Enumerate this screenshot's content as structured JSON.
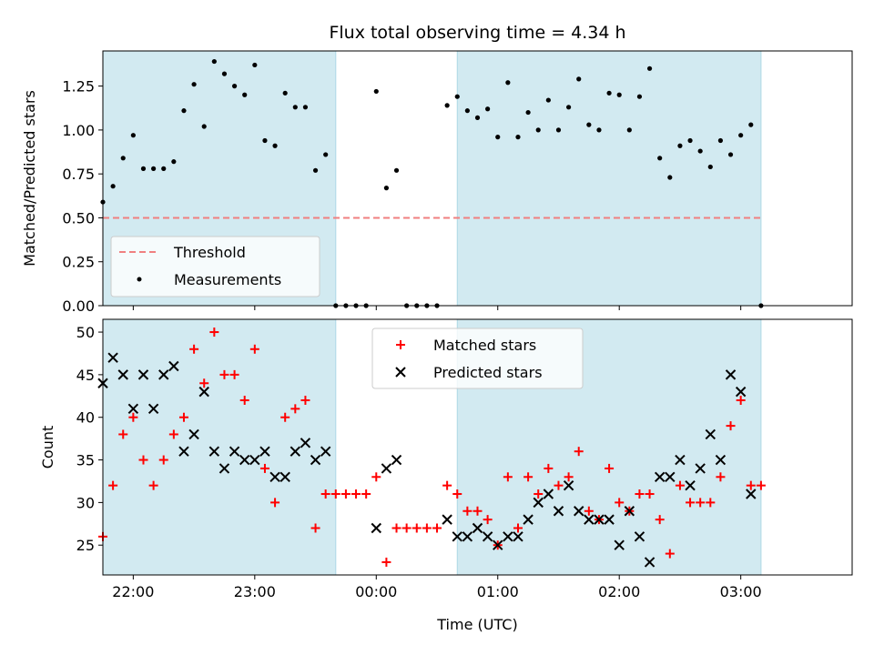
{
  "chart_data": [
    {
      "type": "scatter",
      "title": "Flux total observing time = 4.34 h",
      "ylabel": "Matched/Predicted stars",
      "ylim": [
        0,
        1.45
      ],
      "yticks": [
        0.0,
        0.25,
        0.5,
        0.75,
        1.0,
        1.25
      ],
      "ytick_labels": [
        "0.00",
        "0.25",
        "0.50",
        "0.75",
        "1.00",
        "1.25"
      ],
      "legend": {
        "placement": "lower-left",
        "entries": [
          "Threshold",
          "Measurements"
        ]
      },
      "threshold": {
        "name": "Threshold",
        "value": 0.5,
        "color": "#f08080",
        "style": "dashed",
        "x_range": [
          "21:45",
          "03:10"
        ]
      },
      "series": [
        {
          "name": "Measurements",
          "color": "#000000",
          "marker": "dot",
          "x": [
            "21:45",
            "21:50",
            "21:55",
            "22:00",
            "22:05",
            "22:10",
            "22:15",
            "22:20",
            "22:25",
            "22:30",
            "22:35",
            "22:40",
            "22:45",
            "22:50",
            "22:55",
            "23:00",
            "23:05",
            "23:10",
            "23:15",
            "23:20",
            "23:25",
            "23:30",
            "23:35",
            "23:40",
            "23:45",
            "23:50",
            "23:55",
            "00:00",
            "00:05",
            "00:10",
            "00:15",
            "00:20",
            "00:25",
            "00:30",
            "00:35",
            "00:40",
            "00:45",
            "00:50",
            "00:55",
            "01:00",
            "01:05",
            "01:10",
            "01:15",
            "01:20",
            "01:25",
            "01:30",
            "01:35",
            "01:40",
            "01:45",
            "01:50",
            "01:55",
            "02:00",
            "02:05",
            "02:10",
            "02:15",
            "02:20",
            "02:25",
            "02:30",
            "02:35",
            "02:40",
            "02:45",
            "02:50",
            "02:55",
            "03:00",
            "03:05",
            "03:10"
          ],
          "y": [
            0.59,
            0.68,
            0.84,
            0.97,
            0.78,
            0.78,
            0.78,
            0.82,
            1.11,
            1.26,
            1.02,
            1.39,
            1.32,
            1.25,
            1.2,
            1.37,
            0.94,
            0.91,
            1.21,
            1.13,
            1.13,
            0.77,
            0.86,
            0.0,
            0.0,
            0.0,
            0.0,
            1.22,
            0.67,
            0.77,
            0.0,
            0.0,
            0.0,
            0.0,
            1.14,
            1.19,
            1.11,
            1.07,
            1.12,
            0.96,
            1.27,
            0.96,
            1.1,
            1.0,
            1.17,
            1.0,
            1.13,
            1.29,
            1.03,
            1.0,
            1.21,
            1.2,
            1.0,
            1.19,
            1.35,
            0.84,
            0.73,
            0.91,
            0.94,
            0.88,
            0.79,
            0.94,
            0.86,
            0.97,
            1.03,
            0.0
          ]
        }
      ]
    },
    {
      "type": "scatter",
      "xlabel": "Time (UTC)",
      "ylabel": "Count",
      "ylim": [
        21.5,
        51.5
      ],
      "yticks": [
        25,
        30,
        35,
        40,
        45,
        50
      ],
      "ytick_labels": [
        "25",
        "30",
        "35",
        "40",
        "45",
        "50"
      ],
      "xticks": [
        "22:00",
        "23:00",
        "00:00",
        "01:00",
        "02:00",
        "03:00"
      ],
      "legend": {
        "placement": "upper-center",
        "entries": [
          "Matched stars",
          "Predicted stars"
        ]
      },
      "series": [
        {
          "name": "Matched stars",
          "color": "#ff0000",
          "marker": "plus",
          "x": [
            "21:45",
            "21:50",
            "21:55",
            "22:00",
            "22:05",
            "22:10",
            "22:15",
            "22:20",
            "22:25",
            "22:30",
            "22:35",
            "22:40",
            "22:45",
            "22:50",
            "22:55",
            "23:00",
            "23:05",
            "23:10",
            "23:15",
            "23:20",
            "23:25",
            "23:30",
            "23:35",
            "23:40",
            "23:45",
            "23:50",
            "23:55",
            "00:00",
            "00:05",
            "00:10",
            "00:15",
            "00:20",
            "00:25",
            "00:30",
            "00:35",
            "00:40",
            "00:45",
            "00:50",
            "00:55",
            "01:00",
            "01:05",
            "01:10",
            "01:15",
            "01:20",
            "01:25",
            "01:30",
            "01:35",
            "01:40",
            "01:45",
            "01:50",
            "01:55",
            "02:00",
            "02:05",
            "02:10",
            "02:15",
            "02:20",
            "02:25",
            "02:30",
            "02:35",
            "02:40",
            "02:45",
            "02:50",
            "02:55",
            "03:00",
            "03:05",
            "03:10"
          ],
          "y": [
            26,
            32,
            38,
            40,
            35,
            32,
            35,
            38,
            40,
            48,
            44,
            50,
            45,
            45,
            42,
            48,
            34,
            30,
            40,
            41,
            42,
            27,
            31,
            31,
            31,
            31,
            31,
            33,
            23,
            27,
            27,
            27,
            27,
            27,
            32,
            31,
            29,
            29,
            28,
            25,
            33,
            27,
            33,
            31,
            34,
            32,
            33,
            36,
            29,
            28,
            34,
            30,
            29,
            31,
            31,
            28,
            24,
            32,
            30,
            30,
            30,
            33,
            39,
            42,
            32,
            32
          ]
        },
        {
          "name": "Predicted stars",
          "color": "#000000",
          "marker": "x",
          "x": [
            "21:45",
            "21:50",
            "21:55",
            "22:00",
            "22:05",
            "22:10",
            "22:15",
            "22:20",
            "22:25",
            "22:30",
            "22:35",
            "22:40",
            "22:45",
            "22:50",
            "22:55",
            "23:00",
            "23:05",
            "23:10",
            "23:15",
            "23:20",
            "23:25",
            "23:30",
            "23:35",
            "00:00",
            "00:05",
            "00:10",
            "00:35",
            "00:40",
            "00:45",
            "00:50",
            "00:55",
            "01:00",
            "01:05",
            "01:10",
            "01:15",
            "01:20",
            "01:25",
            "01:30",
            "01:35",
            "01:40",
            "01:45",
            "01:50",
            "01:55",
            "02:00",
            "02:05",
            "02:10",
            "02:15",
            "02:20",
            "02:25",
            "02:30",
            "02:35",
            "02:40",
            "02:45",
            "02:50",
            "02:55",
            "03:00",
            "03:05"
          ],
          "y": [
            44,
            47,
            45,
            41,
            45,
            41,
            45,
            46,
            36,
            38,
            43,
            36,
            34,
            36,
            35,
            35,
            36,
            33,
            33,
            36,
            37,
            35,
            36,
            27,
            34,
            35,
            28,
            26,
            26,
            27,
            26,
            25,
            26,
            26,
            28,
            30,
            31,
            29,
            32,
            29,
            28,
            28,
            28,
            25,
            29,
            26,
            23,
            33,
            33,
            35,
            32,
            34,
            38,
            35,
            45,
            43,
            31
          ]
        }
      ]
    }
  ],
  "shaded_periods": [
    {
      "start": "21:45",
      "end": "23:40",
      "color": "#add8e6"
    },
    {
      "start": "00:40",
      "end": "03:10",
      "color": "#add8e6"
    }
  ]
}
